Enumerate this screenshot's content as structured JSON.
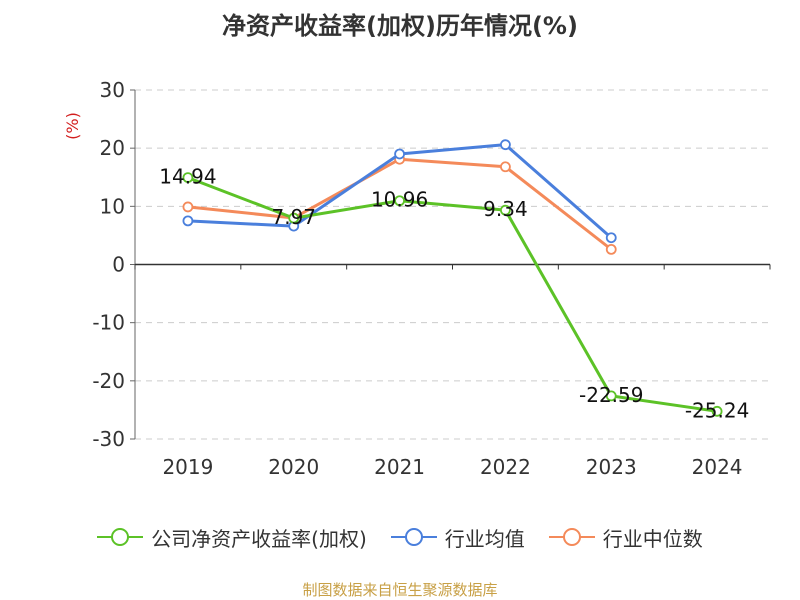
{
  "title": "净资产收益率(加权)历年情况(%)",
  "source": "制图数据来自恒生聚源数据库",
  "chart_data": {
    "type": "line",
    "title": "净资产收益率(加权)历年情况(%)",
    "ylabel": "(%)",
    "ylim": [
      -30,
      30
    ],
    "yticks": [
      30,
      20,
      10,
      0,
      -10,
      -20,
      -30
    ],
    "grid": true,
    "legend_position": "bottom",
    "categories": [
      "2019",
      "2020",
      "2021",
      "2022",
      "2023",
      "2024"
    ],
    "series": [
      {
        "name": "公司净资产收益率(加权)",
        "color": "#5cc227",
        "values": [
          14.94,
          7.97,
          10.96,
          9.34,
          -22.59,
          -25.24
        ],
        "labels": [
          "14.94",
          "7.97",
          "10.96",
          "9.34",
          "-22.59",
          "-25.24"
        ]
      },
      {
        "name": "行业均值",
        "color": "#4a7fdc",
        "values": [
          7.5,
          6.6,
          19.0,
          20.6,
          4.6,
          null
        ]
      },
      {
        "name": "行业中位数",
        "color": "#f48a5a",
        "values": [
          9.9,
          8.0,
          18.1,
          16.8,
          2.6,
          null
        ]
      }
    ]
  }
}
